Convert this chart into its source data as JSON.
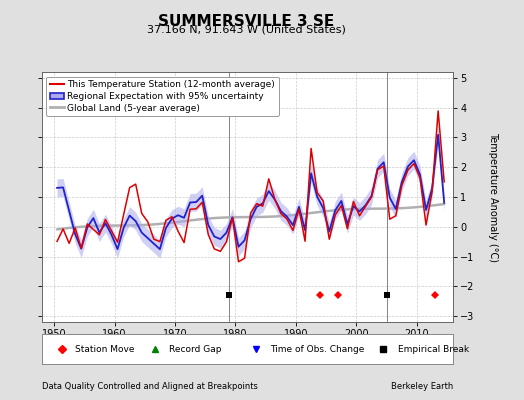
{
  "title": "SUMMERSVILLE 3 SE",
  "subtitle": "37.166 N, 91.643 W (United States)",
  "ylabel": "Temperature Anomaly (°C)",
  "footer_left": "Data Quality Controlled and Aligned at Breakpoints",
  "footer_right": "Berkeley Earth",
  "xlim": [
    1948,
    2016
  ],
  "ylim": [
    -3.2,
    5.2
  ],
  "yticks": [
    -3,
    -2,
    -1,
    0,
    1,
    2,
    3,
    4,
    5
  ],
  "xticks": [
    1950,
    1960,
    1970,
    1980,
    1990,
    2000,
    2010
  ],
  "background_color": "#e0e0e0",
  "plot_bg_color": "#ffffff",
  "station_move_years": [
    1994,
    1997,
    2013
  ],
  "empirical_break_years": [
    1979,
    2005
  ],
  "marker_y": -2.3,
  "red_line_color": "#dd0000",
  "blue_line_color": "#2222cc",
  "blue_band_color": "#aaaaee",
  "gray_line_color": "#b0b0b0",
  "grid_color": "#cccccc",
  "title_fontsize": 11,
  "subtitle_fontsize": 8,
  "tick_fontsize": 7,
  "ylabel_fontsize": 7,
  "legend_fontsize": 6.5,
  "footer_fontsize": 6
}
